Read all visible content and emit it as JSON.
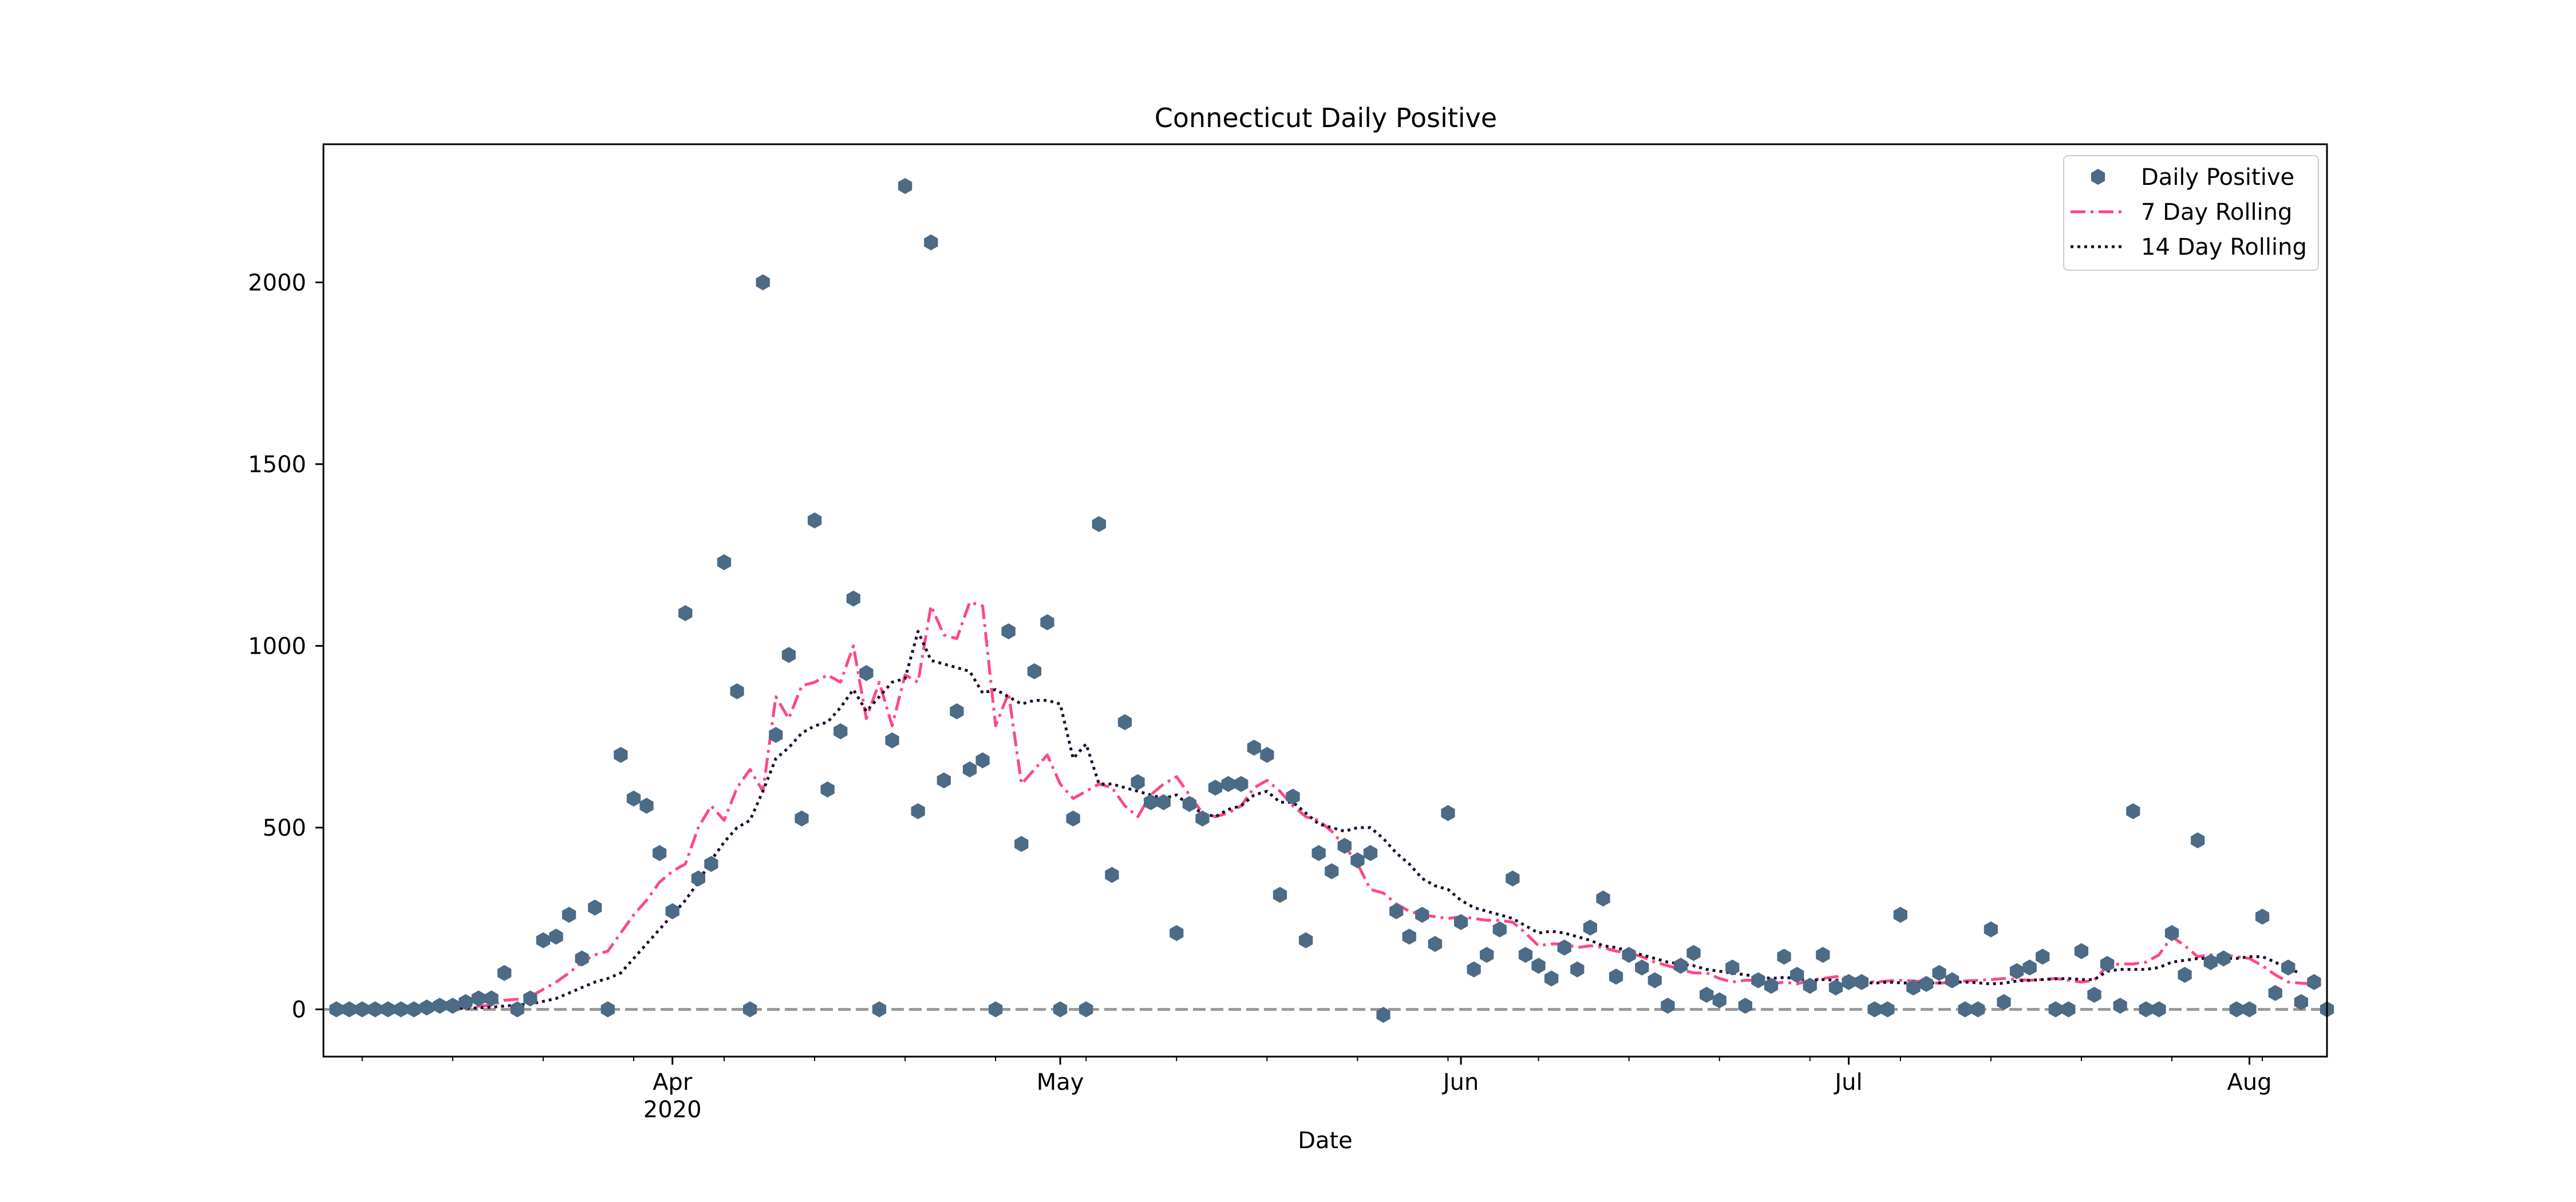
{
  "chart_data": {
    "type": "scatter",
    "title": "Connecticut Daily Positive",
    "xlabel": "Date",
    "ylabel": "",
    "x_start": "2020-03-06",
    "xlim": [
      "2020-03-05",
      "2020-08-07"
    ],
    "ylim": [
      -130,
      2380
    ],
    "y_ticks": [
      0,
      500,
      1000,
      1500,
      2000
    ],
    "x_ticks": [
      {
        "date": "2020-04-01",
        "label": "Apr",
        "sublabel": "2020"
      },
      {
        "date": "2020-05-01",
        "label": "May",
        "sublabel": ""
      },
      {
        "date": "2020-06-01",
        "label": "Jun",
        "sublabel": ""
      },
      {
        "date": "2020-07-01",
        "label": "Jul",
        "sublabel": ""
      },
      {
        "date": "2020-08-01",
        "label": "Aug",
        "sublabel": ""
      }
    ],
    "zero_line": true,
    "grid": false,
    "legend_position": "top-right",
    "series": [
      {
        "name": "Daily Positive",
        "style": "hexagon markers",
        "color": "#4b6b87",
        "values": [
          0,
          0,
          0,
          0,
          0,
          0,
          0,
          5,
          10,
          10,
          20,
          30,
          30,
          100,
          0,
          30,
          190,
          200,
          260,
          140,
          280,
          0,
          700,
          580,
          560,
          430,
          270,
          1090,
          360,
          400,
          1230,
          875,
          0,
          2000,
          755,
          975,
          525,
          1345,
          605,
          765,
          1130,
          925,
          0,
          740,
          2265,
          545,
          2110,
          630,
          820,
          660,
          685,
          0,
          1040,
          455,
          930,
          1065,
          0,
          525,
          0,
          1335,
          370,
          790,
          625,
          570,
          570,
          210,
          565,
          525,
          610,
          620,
          620,
          720,
          700,
          315,
          585,
          190,
          430,
          380,
          450,
          410,
          430,
          -15,
          270,
          200,
          260,
          180,
          540,
          240,
          110,
          150,
          220,
          360,
          150,
          120,
          85,
          170,
          110,
          225,
          305,
          90,
          150,
          115,
          80,
          10,
          120,
          155,
          40,
          25,
          115,
          10,
          80,
          65,
          145,
          95,
          65,
          150,
          60,
          75,
          75,
          0,
          0,
          260,
          60,
          70,
          100,
          80,
          0,
          0,
          220,
          20,
          105,
          115,
          145,
          0,
          0,
          160,
          40,
          125,
          10,
          545,
          0,
          0,
          210,
          95,
          465,
          130,
          140,
          0,
          0,
          255,
          45,
          115,
          20,
          75,
          0
        ]
      },
      {
        "name": "7 Day Rolling",
        "style": "dash-dot",
        "color": "#ff4784",
        "values": [
          0,
          0,
          0,
          0,
          0,
          0,
          0,
          1,
          2,
          4,
          6,
          9,
          11,
          25,
          28,
          35,
          55,
          75,
          100,
          130,
          150,
          160,
          210,
          260,
          300,
          350,
          380,
          400,
          500,
          560,
          520,
          610,
          660,
          600,
          860,
          800,
          890,
          900,
          920,
          900,
          1000,
          800,
          900,
          780,
          920,
          900,
          1110,
          1030,
          1020,
          1120,
          1110,
          780,
          870,
          620,
          660,
          700,
          620,
          580,
          600,
          620,
          610,
          560,
          530,
          590,
          620,
          640,
          590,
          540,
          530,
          540,
          560,
          610,
          630,
          600,
          560,
          530,
          520,
          490,
          450,
          400,
          330,
          320,
          290,
          270,
          260,
          255,
          250,
          255,
          250,
          245,
          245,
          240,
          210,
          175,
          180,
          180,
          170,
          175,
          170,
          160,
          155,
          145,
          130,
          120,
          110,
          100,
          100,
          85,
          75,
          80,
          80,
          70,
          75,
          70,
          80,
          85,
          90,
          88,
          80,
          75,
          78,
          80,
          78,
          75,
          72,
          75,
          78,
          80,
          82,
          85,
          82,
          80,
          82,
          85,
          80,
          75,
          80,
          120,
          125,
          125,
          130,
          150,
          200,
          175,
          145,
          150,
          150,
          145,
          140,
          120,
          95,
          75,
          72,
          70
        ]
      },
      {
        "name": "14 Day Rolling",
        "style": "dotted",
        "color": "#1a0a2a",
        "values": [
          0,
          0,
          0,
          0,
          0,
          0,
          0,
          0,
          1,
          2,
          3,
          4,
          6,
          9,
          12,
          15,
          22,
          30,
          45,
          60,
          75,
          85,
          100,
          140,
          180,
          220,
          260,
          300,
          350,
          410,
          460,
          500,
          520,
          600,
          690,
          720,
          760,
          780,
          790,
          830,
          880,
          820,
          860,
          900,
          910,
          1040,
          960,
          950,
          940,
          930,
          870,
          880,
          860,
          840,
          850,
          850,
          840,
          690,
          730,
          620,
          620,
          610,
          600,
          590,
          580,
          590,
          560,
          540,
          530,
          550,
          560,
          590,
          600,
          570,
          570,
          540,
          510,
          500,
          490,
          500,
          500,
          470,
          430,
          400,
          360,
          340,
          330,
          300,
          280,
          270,
          260,
          250,
          230,
          210,
          215,
          210,
          200,
          190,
          175,
          170,
          160,
          150,
          140,
          130,
          125,
          120,
          110,
          105,
          100,
          95,
          90,
          85,
          88,
          85,
          80,
          82,
          80,
          80,
          75,
          72,
          75,
          73,
          72,
          72,
          73,
          75,
          75,
          73,
          70,
          72,
          78,
          80,
          82,
          84,
          85,
          82,
          82,
          105,
          110,
          110,
          110,
          115,
          130,
          135,
          140,
          140,
          140,
          140,
          145,
          145,
          130,
          110,
          100
        ]
      }
    ]
  }
}
